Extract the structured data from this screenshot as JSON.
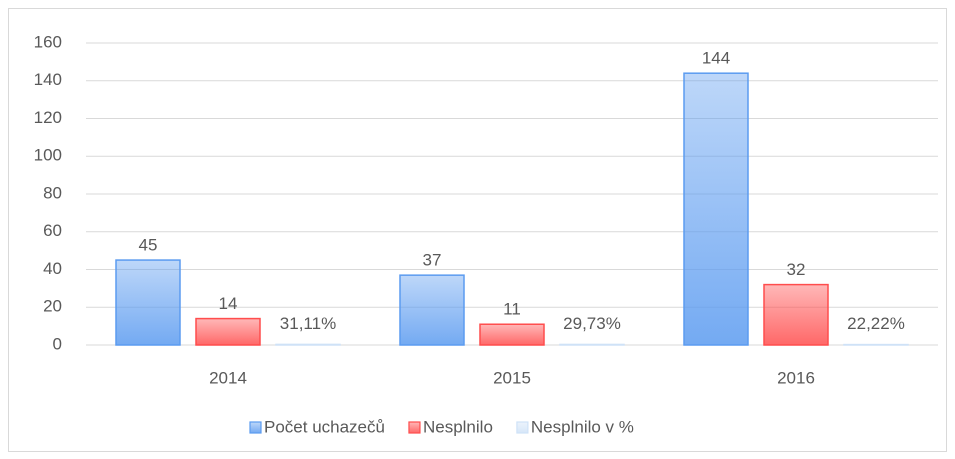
{
  "chart_data": {
    "type": "bar",
    "categories": [
      "2014",
      "2015",
      "2016"
    ],
    "series": [
      {
        "name": "Počet uchazečů",
        "color": "#5b9bf0",
        "values": [
          45,
          37,
          144
        ]
      },
      {
        "name": "Nesplnilo",
        "color": "#ff4d4d",
        "values": [
          14,
          11,
          32
        ]
      },
      {
        "name": "Nesplnilo v %",
        "color": "#cfe2f7",
        "values": [
          0.3111,
          0.2973,
          0.2222
        ],
        "value_labels": [
          "31,11%",
          "29,73%",
          "22,22%"
        ]
      }
    ],
    "ylim": [
      0,
      160
    ],
    "yticks": [
      0,
      20,
      40,
      60,
      80,
      100,
      120,
      140,
      160
    ],
    "grid": true,
    "legend": "bottom"
  }
}
